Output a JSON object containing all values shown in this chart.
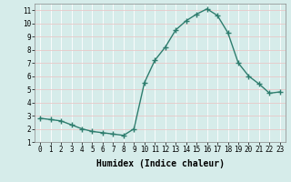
{
  "x": [
    0,
    1,
    2,
    3,
    4,
    5,
    6,
    7,
    8,
    9,
    10,
    11,
    12,
    13,
    14,
    15,
    16,
    17,
    18,
    19,
    20,
    21,
    22,
    23
  ],
  "y": [
    2.8,
    2.7,
    2.6,
    2.3,
    2.0,
    1.8,
    1.7,
    1.6,
    1.5,
    2.0,
    5.5,
    7.2,
    8.2,
    9.5,
    10.2,
    10.7,
    11.1,
    10.6,
    9.3,
    7.0,
    6.0,
    5.4,
    4.7,
    4.8
  ],
  "line_color": "#2e7d6e",
  "marker": "D",
  "marker_size": 2.0,
  "bg_color": "#d6ecea",
  "grid_color_major": "#e8c8c8",
  "grid_color_minor": "#ffffff",
  "xlabel": "Humidex (Indice chaleur)",
  "xlabel_fontsize": 7,
  "xlim": [
    -0.5,
    23.5
  ],
  "ylim": [
    1,
    11.5
  ],
  "yticks": [
    1,
    2,
    3,
    4,
    5,
    6,
    7,
    8,
    9,
    10,
    11
  ],
  "xticks": [
    0,
    1,
    2,
    3,
    4,
    5,
    6,
    7,
    8,
    9,
    10,
    11,
    12,
    13,
    14,
    15,
    16,
    17,
    18,
    19,
    20,
    21,
    22,
    23
  ],
  "tick_fontsize": 5.5,
  "line_width": 1.0
}
